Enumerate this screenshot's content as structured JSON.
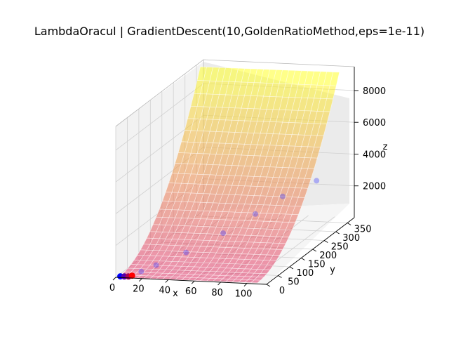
{
  "chart_data": {
    "type": "surface3d",
    "title": "LambdaOracul | GradientDescent(10,GoldenRatioMethod,eps=1e-11)",
    "xlabel": "x",
    "ylabel": "y",
    "zlabel": "z",
    "x_ticks": [
      0,
      20,
      40,
      60,
      80,
      100
    ],
    "y_ticks": [
      0,
      50,
      100,
      150,
      200,
      250,
      300,
      350
    ],
    "z_ticks": [
      2000,
      4000,
      6000,
      8000
    ],
    "xlim": [
      0,
      115
    ],
    "ylim": [
      0,
      380
    ],
    "zlim": [
      0,
      9500
    ],
    "grid": true,
    "surface_colormap": "spring-to-yellow",
    "path_colors": {
      "start": "#0000ff",
      "end": "#ff0000"
    },
    "path_points": [
      {
        "x": 3,
        "y": 3,
        "z": 40
      },
      {
        "x": 6,
        "y": 3,
        "z": 45
      },
      {
        "x": 9,
        "y": 4,
        "z": 45
      },
      {
        "x": 11,
        "y": 8,
        "z": 60
      },
      {
        "x": 15,
        "y": 25,
        "z": 150
      },
      {
        "x": 22,
        "y": 50,
        "z": 300
      },
      {
        "x": 36,
        "y": 100,
        "z": 600
      },
      {
        "x": 52,
        "y": 170,
        "z": 1100
      },
      {
        "x": 66,
        "y": 230,
        "z": 1700
      },
      {
        "x": 78,
        "y": 280,
        "z": 2300
      },
      {
        "x": 95,
        "y": 330,
        "z": 2800
      }
    ]
  }
}
